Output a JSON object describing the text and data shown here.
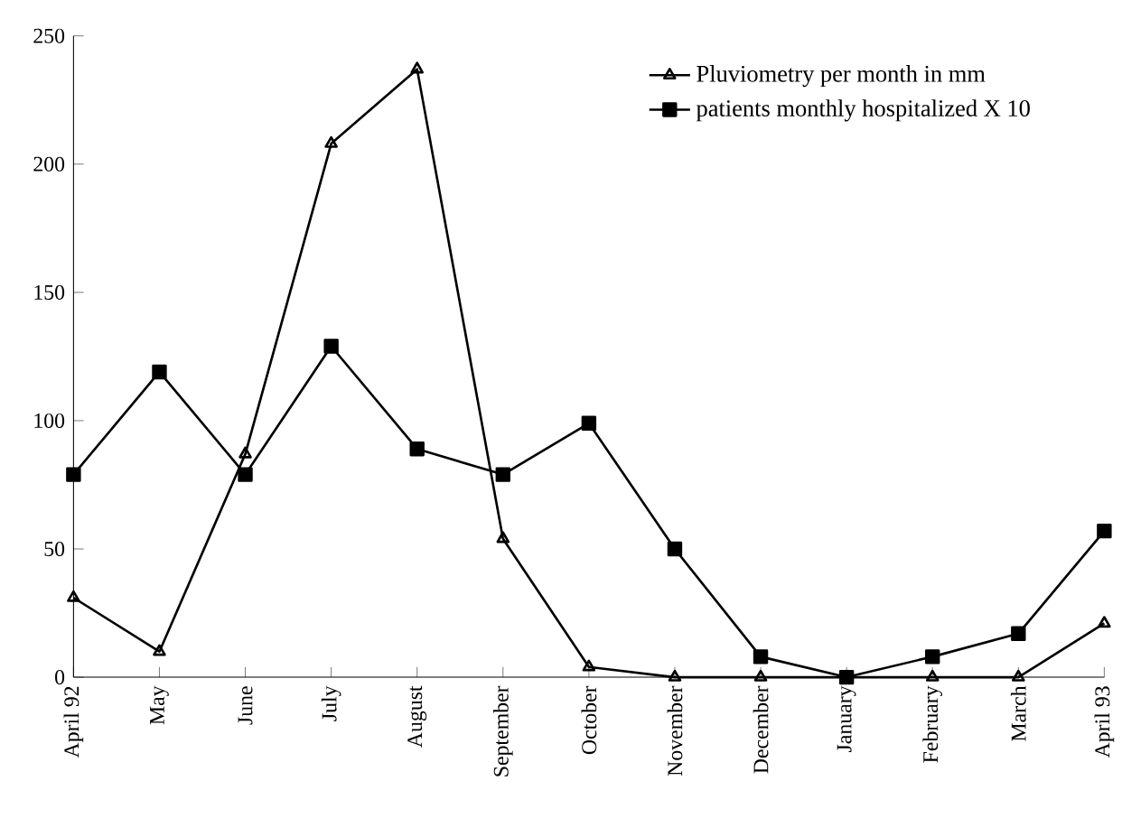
{
  "chart_data": {
    "type": "line",
    "categories": [
      "April 92",
      "May",
      "June",
      "July",
      "August",
      "September",
      "October",
      "November",
      "December",
      "January",
      "February",
      "March",
      "April 93"
    ],
    "series": [
      {
        "name": "Pluviometry per month in mm",
        "color": "#000000",
        "marker": "triangle",
        "values": [
          31,
          10,
          87,
          208,
          237,
          54,
          4,
          0,
          0,
          0,
          0,
          0,
          21
        ]
      },
      {
        "name": "patients monthly hospitalized X 10",
        "color": "#000000",
        "marker": "square",
        "values": [
          79,
          119,
          79,
          129,
          89,
          79,
          99,
          50,
          8,
          0,
          8,
          17,
          57
        ]
      }
    ],
    "ylim": [
      0,
      250
    ],
    "yticks": [
      0,
      50,
      100,
      150,
      200,
      250
    ],
    "grid": false,
    "legend": "top right",
    "line_style": "solid"
  }
}
